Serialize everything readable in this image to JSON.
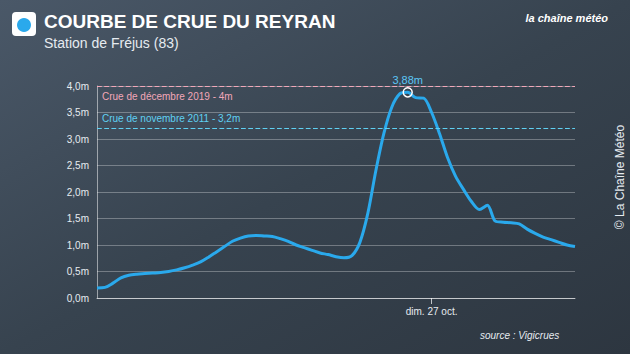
{
  "chart_data": {
    "type": "line",
    "title": "COURBE DE CRUE DU REYRAN",
    "subtitle": "Station de Fréjus (83)",
    "logo": "la chaîne météo",
    "source": "source : Vigicrues",
    "copyright": "© La Chaîne Météo",
    "categories": [
      null,
      null,
      null,
      null,
      null,
      null,
      null,
      null,
      null,
      null,
      null,
      null,
      null,
      null,
      null,
      null,
      null,
      null,
      null,
      null,
      null,
      null,
      null,
      null,
      null,
      null,
      null,
      null,
      null,
      null,
      null,
      null,
      null,
      null,
      null,
      null,
      null,
      null,
      null,
      null,
      null,
      null,
      "dim. 27 oct.",
      null,
      null,
      null,
      null,
      null,
      null,
      null,
      null,
      null,
      null,
      null,
      null,
      null,
      null,
      null,
      null,
      null,
      null
    ],
    "values": [
      0.19,
      0.2,
      0.28,
      0.38,
      0.43,
      0.45,
      0.46,
      0.47,
      0.48,
      0.5,
      0.53,
      0.57,
      0.62,
      0.68,
      0.77,
      0.87,
      0.97,
      1.07,
      1.13,
      1.17,
      1.18,
      1.17,
      1.16,
      1.12,
      1.07,
      1.0,
      0.95,
      0.9,
      0.85,
      0.82,
      0.78,
      0.76,
      0.8,
      1.05,
      1.6,
      2.4,
      3.1,
      3.6,
      3.85,
      3.88,
      3.78,
      3.77,
      3.5,
      3.1,
      2.65,
      2.3,
      2.05,
      1.82,
      1.67,
      1.75,
      1.45,
      1.43,
      1.42,
      1.4,
      1.3,
      1.22,
      1.15,
      1.1,
      1.05,
      1.0,
      0.97
    ],
    "color": "#2aa9ec",
    "ylim": [
      0,
      4
    ],
    "yticks": [
      {
        "value": 0,
        "label": "0,0m"
      },
      {
        "value": 0.5,
        "label": "0,5m"
      },
      {
        "value": 1,
        "label": "1,0m"
      },
      {
        "value": 1.5,
        "label": "1,5m"
      },
      {
        "value": 2,
        "label": "2,0m"
      },
      {
        "value": 2.5,
        "label": "2,5m"
      },
      {
        "value": 3,
        "label": "3,0m"
      },
      {
        "value": 3.5,
        "label": "3,5m"
      },
      {
        "value": 4,
        "label": "4,0m"
      }
    ],
    "grid": true,
    "reference_lines": [
      {
        "label": "Crue de décembre 2019 - 4m",
        "value": 4,
        "color": "#f2a7b8",
        "line_style": "dashed"
      },
      {
        "label": "Crue de novembre 2011 - 3,2m",
        "value": 3.2,
        "color": "#5fd0f2",
        "line_style": "dashed"
      }
    ],
    "annotations": [
      {
        "text": "3,88m",
        "value": 3.88
      }
    ]
  }
}
